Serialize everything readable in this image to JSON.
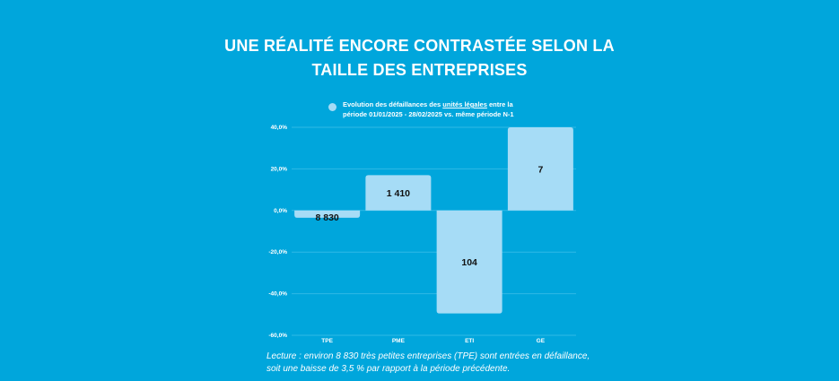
{
  "title_line1": "UNE RÉALITÉ ENCORE CONTRASTÉE SELON LA",
  "title_line2": "TAILLE DES ENTREPRISES",
  "legend": {
    "text_before": "Evolution des défaillances des ",
    "text_underlined": "unités légales",
    "text_after": " entre la",
    "text_line2": "période 01/01/2025 - 28/02/2025 vs. même période  N-1"
  },
  "reading_line1": "Lecture : environ 8 830 très petites entreprises (TPE) sont entrées en défaillance,",
  "reading_line2": "soit une baisse de 3,5 % par rapport à la période précédente.",
  "colors": {
    "background": "#00a6dc",
    "bar": "#a6dcf6",
    "grid": "#2fb9e6"
  },
  "chart_data": {
    "type": "bar",
    "categories": [
      "TPE",
      "PME",
      "ETI",
      "GE"
    ],
    "values": [
      -3.5,
      17.0,
      -49.5,
      40.0
    ],
    "bar_labels": [
      "8 830",
      "1 410",
      "104",
      "7"
    ],
    "ylim": [
      -60,
      40
    ],
    "yticks": [
      40,
      20,
      0,
      -20,
      -40,
      -60
    ],
    "ytick_labels": [
      "40,0%",
      "20,0%",
      "0,0%",
      "-20,0%",
      "-40,0%",
      "-60,0%"
    ],
    "grid": true
  }
}
